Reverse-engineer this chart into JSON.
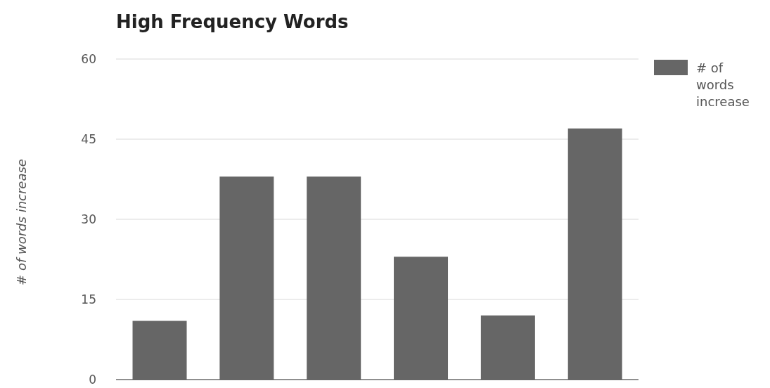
{
  "chart_data": {
    "type": "bar",
    "title": "High Frequency Words",
    "ylabel": "# of words increase",
    "categories": [
      null,
      null,
      null,
      null,
      null,
      null
    ],
    "series": [
      {
        "name": "# of words increase",
        "color": "#666666",
        "values": [
          11,
          38,
          38,
          23,
          12,
          47
        ]
      }
    ],
    "ylim": [
      0,
      60
    ],
    "yticks": [
      0,
      15,
      30,
      45,
      60
    ],
    "grid": "y",
    "legend": "top right"
  }
}
